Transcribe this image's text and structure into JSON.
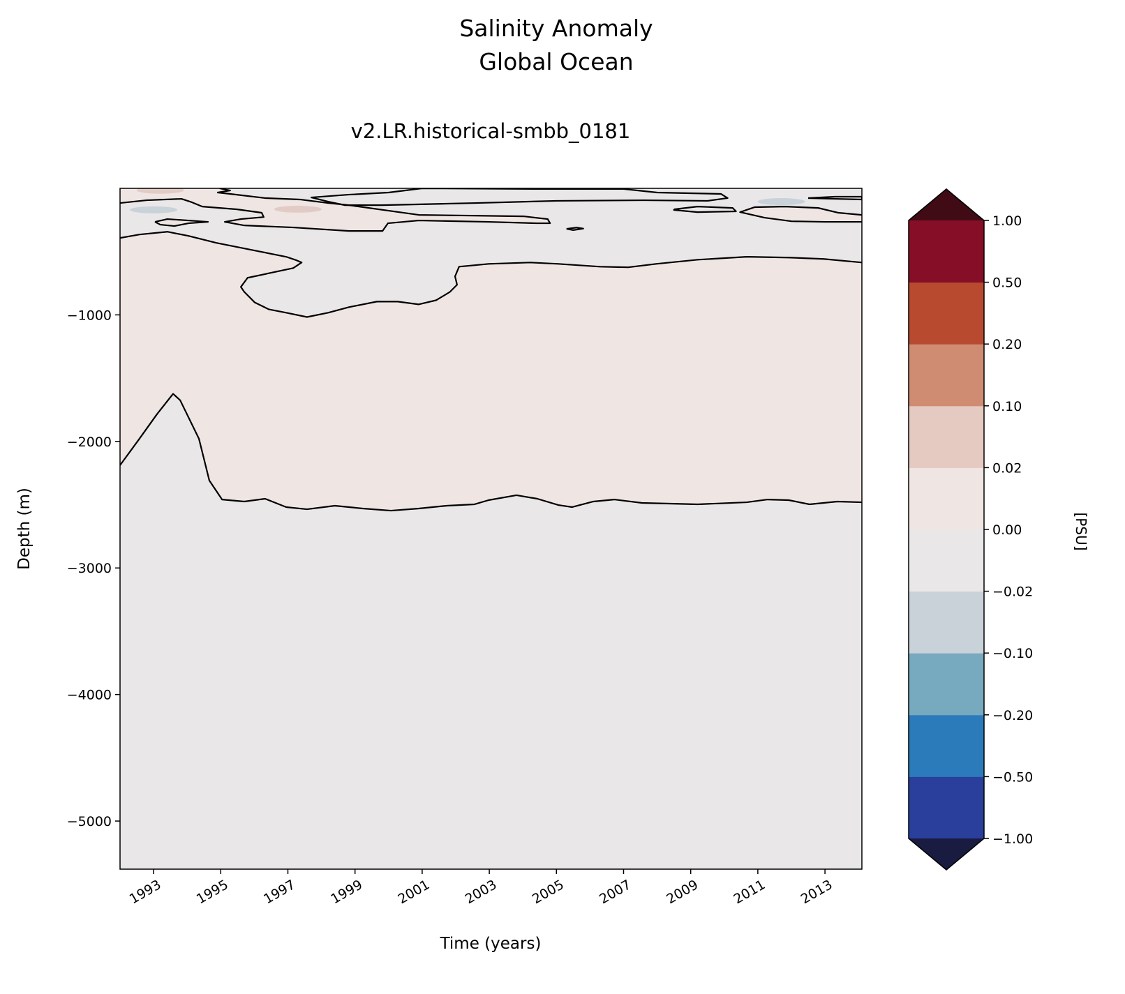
{
  "chart_data": {
    "type": "heatmap",
    "subtype": "filled-contour",
    "title": "Salinity Anomaly\nGlobal Ocean",
    "title_lines": [
      "Salinity Anomaly",
      "Global Ocean"
    ],
    "subtitle": "v2.LR.historical-smbb_0181",
    "xlabel": "Time (years)",
    "ylabel": "Depth (m)",
    "xlim": [
      1992.0,
      2014.1
    ],
    "ylim": [
      -5380,
      0
    ],
    "xticks": [
      "1993",
      "1995",
      "1997",
      "1999",
      "2001",
      "2003",
      "2005",
      "2007",
      "2009",
      "2011",
      "2013"
    ],
    "xtick_values": [
      1993,
      1995,
      1997,
      1999,
      2001,
      2003,
      2005,
      2007,
      2009,
      2011,
      2013
    ],
    "yticks": [
      "−1000",
      "−2000",
      "−3000",
      "−4000",
      "−5000"
    ],
    "ytick_values": [
      -1000,
      -2000,
      -3000,
      -4000,
      -5000
    ],
    "colorbar": {
      "label": "[PSU]",
      "levels": [
        -1.0,
        -0.5,
        -0.2,
        -0.1,
        -0.02,
        0.0,
        0.02,
        0.1,
        0.2,
        0.5,
        1.0
      ],
      "tick_labels": [
        "−1.00",
        "−0.50",
        "−0.20",
        "−0.10",
        "−0.02",
        "0.00",
        "0.02",
        "0.10",
        "0.20",
        "0.50",
        "1.00"
      ],
      "colors": [
        "#2a3f9c",
        "#2b7bba",
        "#77a9bf",
        "#c9d2d9",
        "#e9e7e8",
        "#efe5e3",
        "#e5cac2",
        "#cf8c73",
        "#b84a30",
        "#870e27"
      ],
      "under_color": "#1a1b40",
      "over_color": "#400b14",
      "extend": "both"
    },
    "background_color": "#e9e7e8",
    "positive_color": "#efe5e3",
    "zero_contours": [
      [
        [
          1992.0,
          -2188
        ],
        [
          1992.58,
          -1978
        ],
        [
          1993.1,
          -1785
        ],
        [
          1993.58,
          -1624
        ],
        [
          1993.79,
          -1674
        ],
        [
          1994.35,
          -1978
        ],
        [
          1994.66,
          -2309
        ],
        [
          1995.04,
          -2459
        ],
        [
          1995.7,
          -2475
        ],
        [
          1996.32,
          -2453
        ],
        [
          1996.95,
          -2519
        ],
        [
          1997.57,
          -2536
        ],
        [
          1998.4,
          -2508
        ],
        [
          1999.23,
          -2530
        ],
        [
          2000.07,
          -2547
        ],
        [
          2000.9,
          -2530
        ],
        [
          2001.73,
          -2508
        ],
        [
          2002.56,
          -2497
        ],
        [
          2002.98,
          -2464
        ],
        [
          2003.81,
          -2425
        ],
        [
          2004.43,
          -2453
        ],
        [
          2005.06,
          -2503
        ],
        [
          2005.47,
          -2519
        ],
        [
          2006.1,
          -2475
        ],
        [
          2006.72,
          -2459
        ],
        [
          2007.55,
          -2486
        ],
        [
          2009.21,
          -2497
        ],
        [
          2010.67,
          -2481
        ],
        [
          2011.29,
          -2459
        ],
        [
          2011.92,
          -2464
        ],
        [
          2012.54,
          -2497
        ],
        [
          2013.37,
          -2475
        ],
        [
          2014.1,
          -2481
        ]
      ],
      [
        [
          1992.0,
          -392
        ],
        [
          1992.58,
          -365
        ],
        [
          1993.41,
          -343
        ],
        [
          1994.04,
          -376
        ],
        [
          1994.87,
          -431
        ],
        [
          1996.12,
          -497
        ],
        [
          1996.95,
          -541
        ],
        [
          1997.26,
          -569
        ],
        [
          1997.41,
          -586
        ],
        [
          1997.16,
          -630
        ],
        [
          1995.8,
          -707
        ],
        [
          1995.6,
          -779
        ],
        [
          1995.7,
          -818
        ],
        [
          1996.01,
          -901
        ],
        [
          1996.43,
          -956
        ],
        [
          1996.95,
          -983
        ],
        [
          1997.57,
          -1017
        ],
        [
          1998.2,
          -983
        ],
        [
          1998.82,
          -939
        ],
        [
          1999.65,
          -895
        ],
        [
          2000.27,
          -895
        ],
        [
          2000.9,
          -917
        ],
        [
          2001.42,
          -884
        ],
        [
          2001.83,
          -818
        ],
        [
          2002.04,
          -762
        ],
        [
          2001.98,
          -696
        ],
        [
          2002.1,
          -619
        ],
        [
          2002.98,
          -597
        ],
        [
          2004.22,
          -586
        ],
        [
          2005.06,
          -597
        ],
        [
          2006.3,
          -619
        ],
        [
          2007.14,
          -624
        ],
        [
          2007.97,
          -597
        ],
        [
          2009.21,
          -564
        ],
        [
          2010.67,
          -541
        ],
        [
          2011.92,
          -547
        ],
        [
          2012.96,
          -558
        ],
        [
          2014.1,
          -586
        ]
      ],
      [
        [
          1992.0,
          -116
        ],
        [
          1992.79,
          -94
        ],
        [
          1993.83,
          -83
        ],
        [
          1994.14,
          -110
        ],
        [
          1994.45,
          -144
        ],
        [
          1995.49,
          -166
        ],
        [
          1996.22,
          -193
        ],
        [
          1996.28,
          -227
        ],
        [
          1995.6,
          -243
        ],
        [
          1995.12,
          -265
        ],
        [
          1995.7,
          -293
        ],
        [
          1997.16,
          -309
        ],
        [
          1998.82,
          -337
        ],
        [
          1999.82,
          -337
        ],
        [
          1999.98,
          -276
        ],
        [
          2000.9,
          -254
        ],
        [
          2002.98,
          -265
        ],
        [
          2004.43,
          -276
        ],
        [
          2004.81,
          -276
        ],
        [
          2004.74,
          -243
        ],
        [
          2004.02,
          -221
        ],
        [
          2000.9,
          -210
        ],
        [
          1998.82,
          -133
        ],
        [
          1998.2,
          -116
        ],
        [
          1997.36,
          -88
        ],
        [
          1996.32,
          -77
        ],
        [
          1995.28,
          -44
        ],
        [
          1994.91,
          -33
        ],
        [
          1995.28,
          -17
        ],
        [
          1994.97,
          0
        ]
      ],
      [
        [
          2001.0,
          0
        ],
        [
          2004.5,
          -5
        ],
        [
          2007.0,
          -5
        ],
        [
          2008.0,
          -33
        ],
        [
          2009.9,
          -44
        ],
        [
          2010.1,
          -77
        ],
        [
          2009.5,
          -99
        ],
        [
          2007.6,
          -94
        ],
        [
          2005.0,
          -99
        ],
        [
          2002.6,
          -116
        ],
        [
          1999.8,
          -133
        ],
        [
          1998.7,
          -133
        ],
        [
          1998.2,
          -105
        ],
        [
          1997.7,
          -72
        ],
        [
          1998.8,
          -50
        ],
        [
          2000.0,
          -33
        ],
        [
          2001.0,
          0
        ]
      ],
      [
        [
          1993.04,
          -265
        ],
        [
          1993.41,
          -243
        ],
        [
          1994.04,
          -254
        ],
        [
          1994.62,
          -265
        ],
        [
          1994.04,
          -276
        ],
        [
          1993.62,
          -298
        ],
        [
          1993.2,
          -287
        ],
        [
          1993.04,
          -265
        ]
      ],
      [
        [
          2008.5,
          -166
        ],
        [
          2009.2,
          -144
        ],
        [
          2010.25,
          -155
        ],
        [
          2010.35,
          -182
        ],
        [
          2009.2,
          -188
        ],
        [
          2008.5,
          -171
        ],
        [
          2008.5,
          -166
        ]
      ],
      [
        [
          2014.1,
          -210
        ],
        [
          2013.4,
          -193
        ],
        [
          2012.8,
          -155
        ],
        [
          2011.8,
          -144
        ],
        [
          2010.9,
          -149
        ],
        [
          2010.47,
          -188
        ],
        [
          2011.2,
          -232
        ],
        [
          2012.0,
          -260
        ],
        [
          2013.0,
          -265
        ],
        [
          2014.1,
          -265
        ]
      ],
      [
        [
          2012.5,
          -77
        ],
        [
          2013.3,
          -66
        ],
        [
          2014.1,
          -66
        ],
        [
          2014.1,
          -88
        ],
        [
          2013.3,
          -83
        ],
        [
          2012.5,
          -77
        ]
      ],
      [
        [
          2005.3,
          -320
        ],
        [
          2005.6,
          -310
        ],
        [
          2005.8,
          -318
        ],
        [
          2005.5,
          -330
        ],
        [
          2005.3,
          -320
        ]
      ]
    ],
    "anomaly_patches": [
      {
        "x": 1993.2,
        "depth": -15,
        "value": 0.05
      },
      {
        "x": 1993.0,
        "depth": -170,
        "value": -0.05
      },
      {
        "x": 1997.3,
        "depth": -165,
        "value": 0.05
      },
      {
        "x": 2011.7,
        "depth": -105,
        "value": -0.05
      }
    ]
  }
}
